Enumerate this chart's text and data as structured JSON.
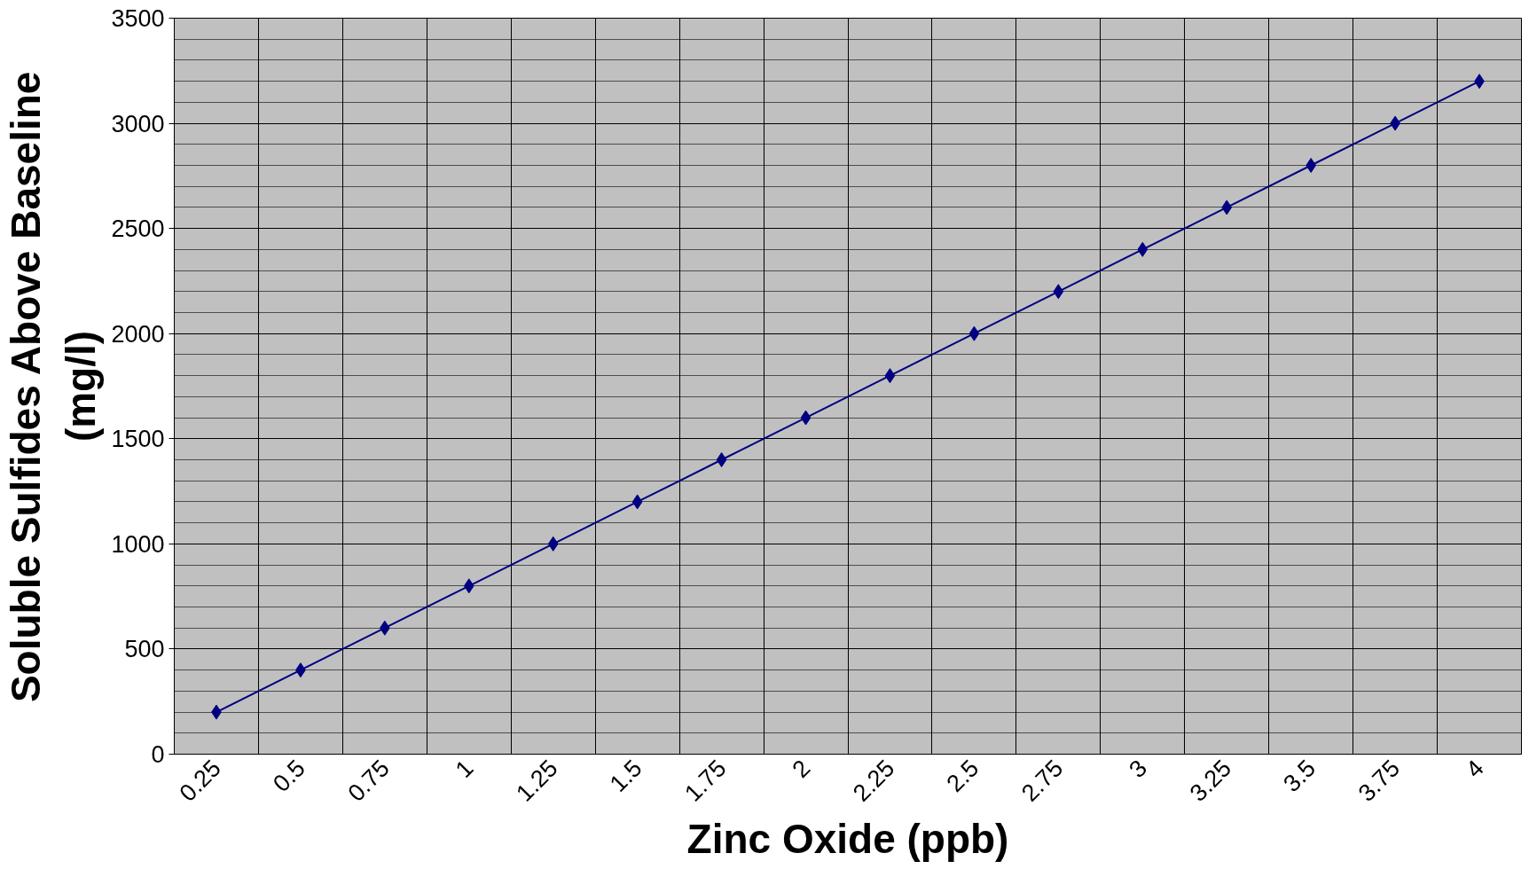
{
  "chart_data": {
    "type": "line",
    "xlabel": "Zinc Oxide (ppb)",
    "ylabel": "Soluble Sulfides Above Baseline (mg/l)",
    "categories": [
      "0.25",
      "0.5",
      "0.75",
      "1",
      "1.25",
      "1.5",
      "1.75",
      "2",
      "2.25",
      "2.5",
      "2.75",
      "3",
      "3.25",
      "3.5",
      "3.75",
      "4"
    ],
    "series": [
      {
        "color": "#000080",
        "values": [
          200,
          400,
          600,
          800,
          1000,
          1200,
          1400,
          1600,
          1800,
          2000,
          2200,
          2400,
          2600,
          2800,
          3000,
          3200
        ]
      }
    ],
    "ylim": [
      0,
      3500
    ],
    "yticks": [
      0,
      500,
      1000,
      1500,
      2000,
      2500,
      3000,
      3500
    ],
    "grid": true,
    "marker": "diamond",
    "line_style": "solid"
  }
}
